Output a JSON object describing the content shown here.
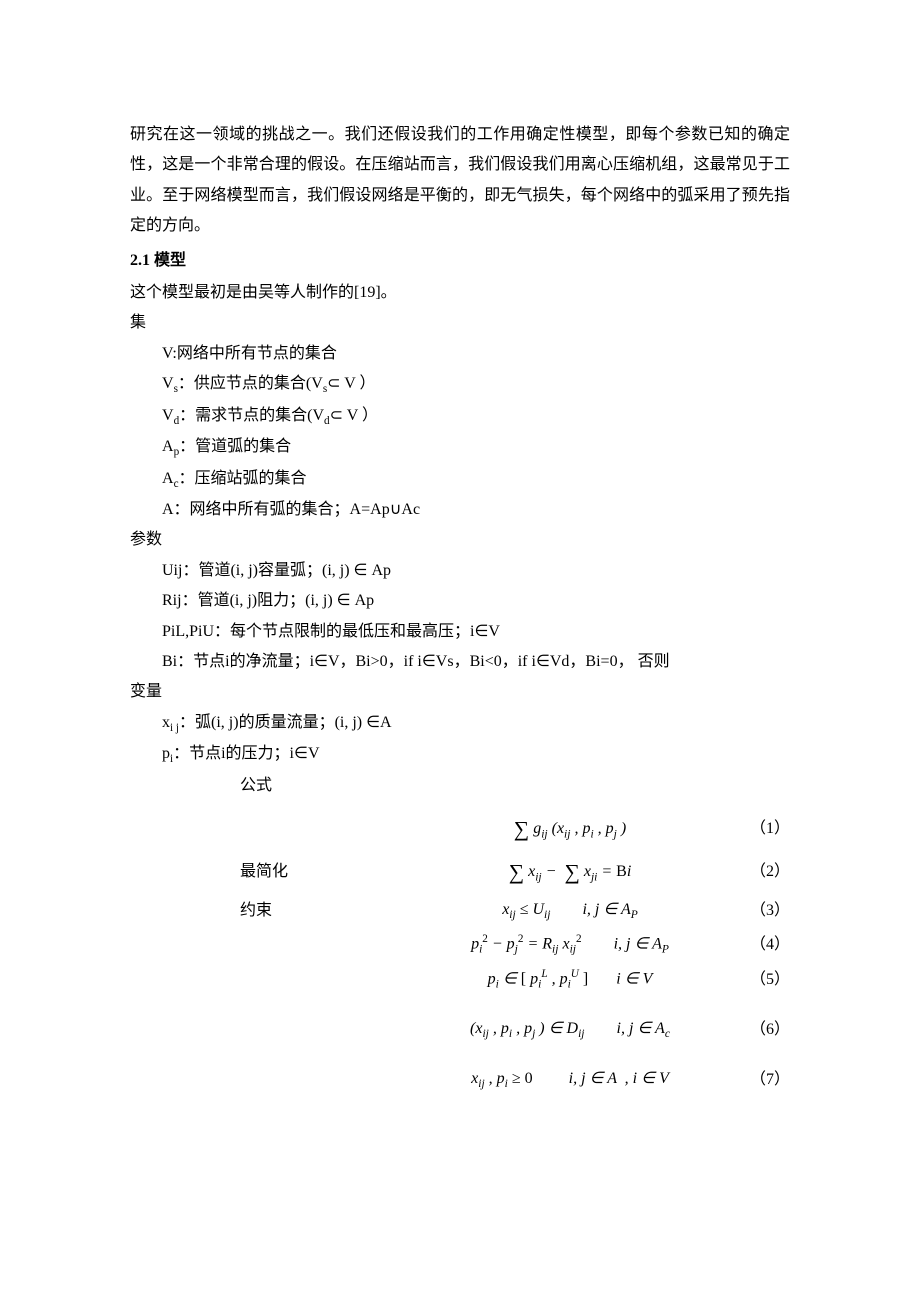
{
  "intro_para": "研究在这一领域的挑战之一。我们还假设我们的工作用确定性模型，即每个参数已知的确定性，这是一个非常合理的假设。在压缩站而言，我们假设我们用离心压缩机组，这最常见于工业。至于网络模型而言，我们假设网络是平衡的，即无气损失，每个网络中的弧采用了预先指定的方向。",
  "section_num_title": "2.1 模型",
  "model_origin": "这个模型最初是由吴等人制作的[19]。",
  "sets_heading": "集",
  "sets": {
    "V": "V:网络中所有节点的集合",
    "Vs_pre": "V",
    "Vs_sub": "s",
    "Vs_post": "：供应节点的集合(V",
    "Vs_sub2": "s",
    "Vs_tail": "⊂ V ）",
    "Vd_pre": "V",
    "Vd_sub": "d",
    "Vd_post": "：需求节点的集合(V",
    "Vd_sub2": "d",
    "Vd_tail": "⊂ V ）",
    "Ap_pre": "A",
    "Ap_sub": "p",
    "Ap_post": "：管道弧的集合",
    "Ac_pre": "A",
    "Ac_sub": "c",
    "Ac_post": "：压缩站弧的集合",
    "A": "A：网络中所有弧的集合；A=Ap∪Ac"
  },
  "params_heading": "参数",
  "params": {
    "Uij": "Uij：管道(i, j)容量弧；(i, j) ∈ Ap",
    "Rij": "Rij：管道(i, j)阻力；(i, j) ∈ Ap",
    "PiLU": "PiL,PiU：每个节点限制的最低压和最高压；i∈V",
    "Bi": "Bi：节点i的净流量；i∈V，Bi>0，if i∈Vs，Bi<0，if i∈Vd，Bi=0，  否则"
  },
  "vars_heading": "变量",
  "vars": {
    "xij_pre": "x",
    "xij_sub": "i j",
    "xij_post": "：弧(i, j)的质量流量；(i, j) ∈A",
    "pi_pre": "p",
    "pi_sub": "i",
    "pi_post": "：节点i的压力；i∈V"
  },
  "formula_heading": "公式",
  "eq_labels": {
    "minimize": "最简化",
    "constraint": "约束"
  },
  "equations": [
    {
      "label": "",
      "html": "<span class='bigop'>∑</span> g<span class='subm'>ij</span> (x<span class='subm'>ij</span> , p<span class='subm'>i</span> , p<span class='subm'>j</span> )",
      "num": "（1）"
    },
    {
      "label": "minimize",
      "html": "<span class='bigop'>∑</span> x<span class='subm'>ij</span> − &nbsp;<span class='bigop'>∑</span> x<span class='subm'>ji</span> = <span class='rm'>B</span>i",
      "num": "（2）"
    },
    {
      "label": "constraint",
      "html": "x<span class='subm'>ij</span> ≤ U<span class='subm'>ij</span> &nbsp;&nbsp;&nbsp;&nbsp;&nbsp;&nbsp; i, j ∈ A<span class='subm'>P</span>",
      "num": "（3）"
    },
    {
      "label": "",
      "html": "p<span class='subm'>i</span><span class='sup rm'>2</span> − p<span class='subm'>j</span><span class='sup rm'>2</span> = R<span class='subm'>ij</span> x<span class='subm'>ij</span><span class='sup rm'>2</span> &nbsp;&nbsp;&nbsp;&nbsp;&nbsp;&nbsp; i, j ∈ A<span class='subm'>P</span>",
      "num": "（4）"
    },
    {
      "label": "",
      "html": "p<span class='subm'>i</span> ∈ <span class='rm'>[</span> p<span class='subm'>i</span><span class='sup'>L</span> , p<span class='subm'>i</span><span class='sup'>U</span> <span class='rm'>]</span> &nbsp;&nbsp;&nbsp;&nbsp;&nbsp; i ∈ V",
      "num": "（5）"
    },
    {
      "label": "",
      "html": "(x<span class='subm'>ij</span> , p<span class='subm'>i</span> , p<span class='subm'>j</span> ) ∈ D<span class='subm'>ij</span> &nbsp;&nbsp;&nbsp;&nbsp;&nbsp;&nbsp; i, j ∈ A<span class='subm'>c</span>",
      "num": "（6）"
    },
    {
      "label": "",
      "html": "x<span class='subm'>ij</span> , p<span class='subm'>i</span> ≥ <span class='rm'>0</span> &nbsp;&nbsp;&nbsp;&nbsp;&nbsp;&nbsp;&nbsp; i, j ∈ A &nbsp;, i ∈ V",
      "num": "（7）"
    }
  ],
  "spacer_after": [
    5,
    6
  ]
}
